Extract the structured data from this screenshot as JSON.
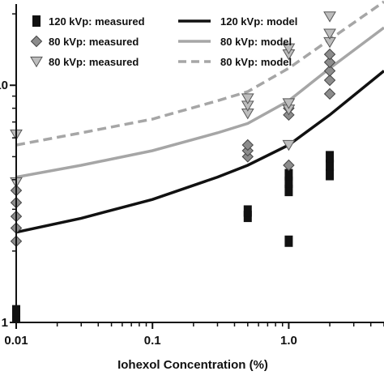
{
  "chart_data": {
    "type": "scatter",
    "title": "",
    "xlabel": "Iohexol Concentration (%)",
    "ylabel": "",
    "x_scale": "log",
    "y_scale": "log",
    "xlim": [
      0.01,
      5
    ],
    "ylim": [
      1,
      22
    ],
    "x_ticks": [
      {
        "value": 0.01,
        "label": "0.01"
      },
      {
        "value": 0.1,
        "label": "0.1"
      },
      {
        "value": 1,
        "label": "1.0"
      }
    ],
    "y_ticks": [
      {
        "value": 1,
        "label": "1"
      },
      {
        "value": 10,
        "label": "10"
      }
    ],
    "legend_position": "top",
    "series": [
      {
        "name": "120 kVp: measured",
        "kind": "scatter",
        "marker": "square",
        "color": "#111111",
        "points": [
          [
            0.01,
            1.05
          ],
          [
            0.01,
            1.12
          ],
          [
            0.5,
            2.8
          ],
          [
            0.5,
            2.95
          ],
          [
            1.0,
            2.2
          ],
          [
            1.0,
            3.6
          ],
          [
            1.0,
            3.9
          ],
          [
            1.0,
            4.2
          ],
          [
            2.0,
            4.2
          ],
          [
            2.0,
            4.6
          ],
          [
            2.0,
            5.0
          ]
        ]
      },
      {
        "name": "80 kVp: measured",
        "kind": "scatter",
        "marker": "diamond",
        "color": "#8c8c8c",
        "points": [
          [
            0.01,
            2.2
          ],
          [
            0.01,
            2.5
          ],
          [
            0.01,
            2.8
          ],
          [
            0.01,
            3.2
          ],
          [
            0.01,
            3.6
          ],
          [
            0.5,
            5.0
          ],
          [
            0.5,
            5.3
          ],
          [
            0.5,
            5.6
          ],
          [
            1.0,
            4.6
          ],
          [
            1.0,
            7.5
          ],
          [
            1.0,
            8.0
          ],
          [
            2.0,
            9.2
          ],
          [
            2.0,
            10.5
          ],
          [
            2.0,
            11.5
          ],
          [
            2.0,
            12.5
          ],
          [
            2.0,
            13.5
          ]
        ]
      },
      {
        "name": "80 kVp: measured",
        "kind": "scatter",
        "marker": "triangle-down",
        "color": "#bdbdbd",
        "points": [
          [
            0.01,
            6.2
          ],
          [
            0.01,
            3.9
          ],
          [
            0.5,
            7.6
          ],
          [
            0.5,
            8.2
          ],
          [
            0.5,
            8.8
          ],
          [
            1.0,
            5.6
          ],
          [
            1.0,
            7.9
          ],
          [
            1.0,
            8.4
          ],
          [
            1.0,
            13.5
          ],
          [
            1.0,
            14.3
          ],
          [
            2.0,
            15.2
          ],
          [
            2.0,
            16.5
          ],
          [
            2.0,
            19.5
          ]
        ]
      },
      {
        "name": "120 kVp: model",
        "kind": "line",
        "style": "solid",
        "color": "#111111",
        "points": [
          [
            0.01,
            2.4
          ],
          [
            0.03,
            2.75
          ],
          [
            0.1,
            3.3
          ],
          [
            0.3,
            4.1
          ],
          [
            0.5,
            4.6
          ],
          [
            1.0,
            5.6
          ],
          [
            2.0,
            7.5
          ],
          [
            5.0,
            11.5
          ]
        ]
      },
      {
        "name": "80 kVp: model",
        "kind": "line",
        "style": "solid",
        "color": "#a6a6a6",
        "points": [
          [
            0.01,
            4.1
          ],
          [
            0.03,
            4.6
          ],
          [
            0.1,
            5.3
          ],
          [
            0.3,
            6.3
          ],
          [
            0.5,
            6.9
          ],
          [
            1.0,
            8.6
          ],
          [
            2.0,
            11.8
          ],
          [
            5.0,
            17.5
          ]
        ]
      },
      {
        "name": "80 kVp: model",
        "kind": "line",
        "style": "dashed",
        "color": "#a6a6a6",
        "points": [
          [
            0.01,
            5.6
          ],
          [
            0.03,
            6.3
          ],
          [
            0.1,
            7.2
          ],
          [
            0.3,
            8.6
          ],
          [
            0.5,
            9.4
          ],
          [
            1.0,
            11.8
          ],
          [
            2.0,
            15.6
          ],
          [
            5.0,
            22.5
          ]
        ]
      }
    ]
  }
}
